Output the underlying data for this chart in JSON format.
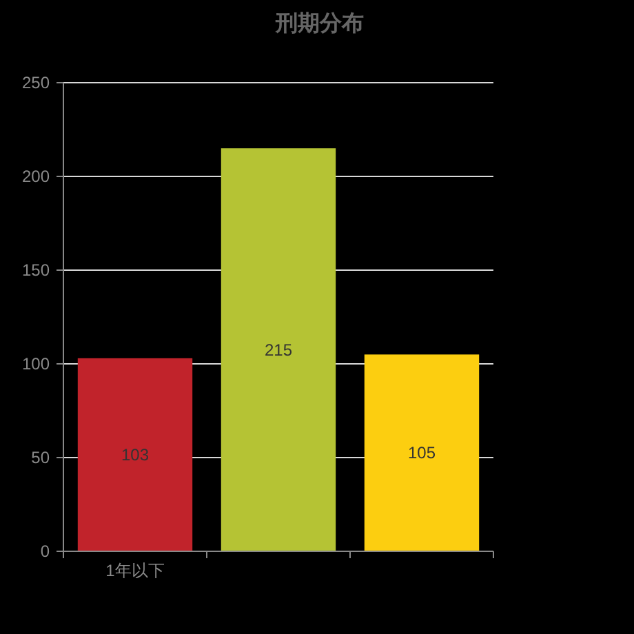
{
  "chart_data": {
    "type": "bar",
    "title": "刑期分布",
    "categories": [
      "1年以下",
      null,
      null
    ],
    "values": [
      103,
      215,
      105
    ],
    "colors": [
      "#c1232b",
      "#b5c334",
      "#fcce10"
    ],
    "ylim": [
      0,
      250
    ],
    "yticks": [
      0,
      50,
      100,
      150,
      200,
      250
    ],
    "grid": "y",
    "data_labels": true
  }
}
